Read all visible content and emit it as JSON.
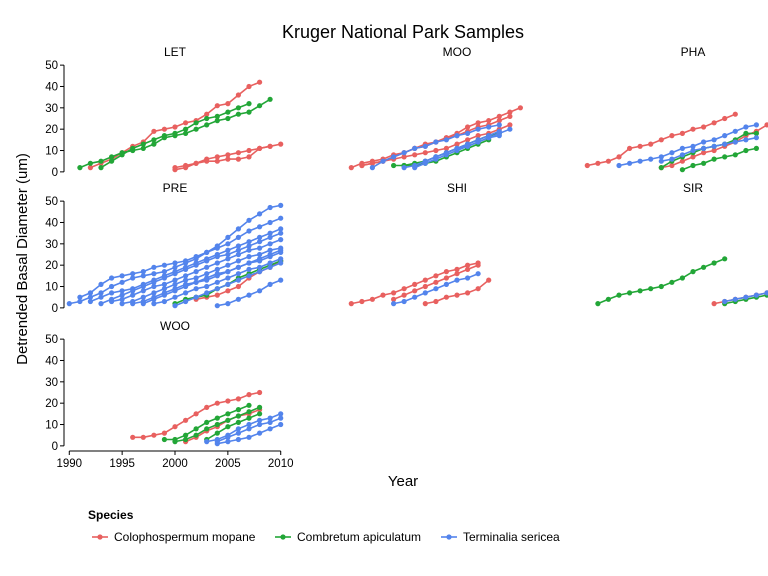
{
  "chart_data": {
    "type": "line",
    "title": "Kruger National Park Samples",
    "xlabel": "Year",
    "ylabel": "Detrended Basal Diameter (um)",
    "xlim": [
      1989.5,
      2010.5
    ],
    "ylim": [
      -1,
      51
    ],
    "x_ticks": [
      1990,
      1995,
      2000,
      2005,
      2010
    ],
    "y_ticks": [
      0,
      10,
      20,
      30,
      40,
      50
    ],
    "legend": {
      "title": "Species",
      "position": "bottom-left",
      "entries": [
        {
          "name": "Colophospermum mopane",
          "color": "#e8605f"
        },
        {
          "name": "Combretum apiculatum",
          "color": "#22a637"
        },
        {
          "name": "Terminalia sericea",
          "color": "#5384ec"
        }
      ]
    },
    "series_colors": {
      "mopane": "#e8605f",
      "combretum": "#22a637",
      "terminalia": "#5384ec"
    },
    "panels": [
      {
        "name": "LET",
        "lines": [
          {
            "species": "mopane",
            "x_start": 1992,
            "values": [
              2,
              4,
              6,
              9,
              12,
              14,
              19,
              20,
              21,
              23,
              24,
              27,
              31,
              32,
              36,
              40,
              42
            ]
          },
          {
            "species": "mopane",
            "x_start": 2000,
            "values": [
              1,
              2,
              4,
              6,
              7,
              8,
              9,
              10,
              11,
              12,
              13
            ]
          },
          {
            "species": "mopane",
            "x_start": 2000,
            "values": [
              2,
              3,
              4,
              5,
              5,
              6,
              6,
              7,
              11,
              12
            ]
          },
          {
            "species": "combretum",
            "x_start": 1991,
            "values": [
              2,
              4,
              5,
              7,
              9,
              10,
              11,
              13,
              16,
              17,
              18,
              20,
              22,
              24,
              25,
              27,
              28,
              31,
              34
            ]
          },
          {
            "species": "combretum",
            "x_start": 1993,
            "values": [
              2,
              5,
              8,
              11,
              13,
              15,
              17,
              18,
              20,
              23,
              25,
              26,
              28,
              30,
              32
            ]
          }
        ]
      },
      {
        "name": "MOO",
        "lines": [
          {
            "species": "mopane",
            "x_start": 1990,
            "values": [
              2,
              4,
              5,
              6,
              8,
              9,
              11,
              13,
              14,
              16,
              18,
              21,
              23,
              24,
              26,
              28,
              30
            ]
          },
          {
            "species": "mopane",
            "x_start": 1991,
            "values": [
              3,
              4,
              5,
              7,
              9,
              11,
              12,
              14,
              16,
              17,
              19,
              21,
              22,
              24,
              26
            ]
          },
          {
            "species": "mopane",
            "x_start": 1991,
            "values": [
              3,
              4,
              5,
              6,
              7,
              8,
              9,
              10,
              11,
              13,
              15,
              17,
              18,
              20,
              22
            ]
          },
          {
            "species": "combretum",
            "x_start": 1994,
            "values": [
              3,
              3,
              3,
              4,
              5,
              7,
              9,
              11,
              13,
              15
            ]
          },
          {
            "species": "combretum",
            "x_start": 1995,
            "values": [
              3,
              4,
              5,
              7,
              9,
              11,
              13,
              15,
              17,
              18
            ]
          },
          {
            "species": "terminalia",
            "x_start": 1992,
            "values": [
              2,
              5,
              7,
              9,
              11,
              12,
              14,
              15,
              17,
              18,
              20,
              21,
              22
            ]
          },
          {
            "species": "terminalia",
            "x_start": 1995,
            "values": [
              2,
              3,
              5,
              7,
              9,
              11,
              12,
              14,
              16,
              17
            ]
          },
          {
            "species": "terminalia",
            "x_start": 1996,
            "values": [
              2,
              4,
              6,
              8,
              10,
              12,
              14,
              16,
              18,
              20
            ]
          },
          {
            "species": "terminalia",
            "x_start": 1997,
            "values": [
              5,
              7,
              9,
              11,
              13,
              15,
              17,
              19
            ]
          }
        ]
      },
      {
        "name": "PHA",
        "lines": [
          {
            "species": "mopane",
            "x_start": 1990,
            "values": [
              3,
              4,
              5,
              7,
              11,
              12,
              13,
              15,
              17,
              18,
              20,
              21,
              23,
              25,
              27
            ]
          },
          {
            "species": "mopane",
            "x_start": 1997,
            "values": [
              2,
              3,
              5,
              7,
              9,
              10,
              12,
              14,
              17,
              19,
              22
            ]
          },
          {
            "species": "combretum",
            "x_start": 1997,
            "values": [
              2,
              5,
              7,
              9,
              11,
              12,
              13,
              15,
              18,
              18
            ]
          },
          {
            "species": "combretum",
            "x_start": 1999,
            "values": [
              1,
              3,
              4,
              6,
              7,
              8,
              10,
              11
            ]
          },
          {
            "species": "terminalia",
            "x_start": 1993,
            "values": [
              3,
              4,
              5,
              6,
              7,
              9,
              11,
              12,
              14,
              15,
              17,
              19,
              21,
              22
            ]
          },
          {
            "species": "terminalia",
            "x_start": 1997,
            "values": [
              5,
              6,
              8,
              10,
              11,
              12,
              13,
              14,
              15,
              16
            ]
          }
        ]
      },
      {
        "name": "PRE",
        "lines": [
          {
            "species": "mopane",
            "x_start": 2002,
            "values": [
              4,
              5,
              6,
              8,
              10,
              14,
              17,
              19,
              22
            ]
          },
          {
            "species": "combretum",
            "x_start": 2000,
            "values": [
              2,
              4,
              5,
              6,
              9,
              11,
              14,
              16,
              18,
              20,
              22
            ]
          },
          {
            "species": "terminalia",
            "x_start": 1990,
            "values": [
              2,
              3,
              5,
              7,
              10,
              12,
              14,
              15,
              16,
              17,
              19,
              21,
              23,
              26,
              29,
              33,
              37,
              41,
              44,
              47,
              48
            ]
          },
          {
            "species": "terminalia",
            "x_start": 1991,
            "values": [
              5,
              7,
              11,
              14,
              15,
              16,
              17,
              19,
              20,
              21,
              22,
              24,
              26,
              28,
              30,
              33,
              36,
              38,
              40,
              42
            ]
          },
          {
            "species": "terminalia",
            "x_start": 1992,
            "values": [
              3,
              5,
              7,
              8,
              9,
              11,
              13,
              15,
              17,
              19,
              21,
              23,
              25,
              27,
              29,
              31,
              33,
              35,
              37
            ]
          },
          {
            "species": "terminalia",
            "x_start": 1993,
            "values": [
              2,
              4,
              6,
              8,
              10,
              12,
              14,
              16,
              18,
              20,
              22,
              24,
              25,
              27,
              29,
              31,
              33,
              35
            ]
          },
          {
            "species": "terminalia",
            "x_start": 1994,
            "values": [
              3,
              4,
              6,
              8,
              10,
              11,
              13,
              15,
              17,
              19,
              21,
              23,
              25,
              27,
              28,
              30,
              32
            ]
          },
          {
            "species": "terminalia",
            "x_start": 1995,
            "values": [
              2,
              3,
              5,
              7,
              9,
              11,
              13,
              14,
              16,
              18,
              20,
              22,
              24,
              25,
              27,
              28
            ]
          },
          {
            "species": "terminalia",
            "x_start": 1996,
            "values": [
              2,
              3,
              5,
              7,
              9,
              11,
              12,
              14,
              16,
              17,
              19,
              21,
              23,
              25,
              27
            ]
          },
          {
            "species": "terminalia",
            "x_start": 1997,
            "values": [
              2,
              4,
              6,
              8,
              10,
              12,
              13,
              15,
              17,
              19,
              21,
              22,
              24,
              26
            ]
          },
          {
            "species": "terminalia",
            "x_start": 1998,
            "values": [
              2,
              3,
              5,
              7,
              9,
              10,
              12,
              14,
              16,
              18,
              19,
              21,
              23
            ]
          },
          {
            "species": "terminalia",
            "x_start": 2000,
            "values": [
              1,
              3,
              5,
              7,
              9,
              11,
              13,
              15,
              17,
              19,
              21
            ]
          },
          {
            "species": "terminalia",
            "x_start": 2004,
            "values": [
              1,
              2,
              4,
              6,
              8,
              11,
              13
            ]
          }
        ]
      },
      {
        "name": "SHI",
        "lines": [
          {
            "species": "mopane",
            "x_start": 1990,
            "values": [
              2,
              3,
              4,
              6,
              7,
              9,
              11,
              13,
              15,
              17,
              18,
              20,
              21
            ]
          },
          {
            "species": "mopane",
            "x_start": 1994,
            "values": [
              4,
              6,
              8,
              10,
              12,
              14,
              16,
              18,
              20
            ]
          },
          {
            "species": "mopane",
            "x_start": 1997,
            "values": [
              2,
              3,
              5,
              6,
              7,
              9,
              13
            ]
          },
          {
            "species": "terminalia",
            "x_start": 1994,
            "values": [
              2,
              3,
              5,
              7,
              9,
              11,
              13,
              14,
              16
            ]
          }
        ]
      },
      {
        "name": "SIR",
        "lines": [
          {
            "species": "mopane",
            "x_start": 2002,
            "values": [
              2,
              3,
              4,
              5,
              6,
              7,
              8
            ]
          },
          {
            "species": "combretum",
            "x_start": 1991,
            "values": [
              2,
              4,
              6,
              7,
              8,
              9,
              10,
              12,
              14,
              17,
              19,
              21,
              23
            ]
          },
          {
            "species": "combretum",
            "x_start": 2003,
            "values": [
              2,
              3,
              4,
              5,
              6,
              7
            ]
          },
          {
            "species": "terminalia",
            "x_start": 2003,
            "values": [
              3,
              4,
              5,
              6,
              7
            ]
          }
        ]
      },
      {
        "name": "WOO",
        "lines": [
          {
            "species": "mopane",
            "x_start": 1996,
            "values": [
              4,
              4,
              5,
              6,
              9,
              12,
              15,
              18,
              20,
              21,
              22,
              24,
              25
            ]
          },
          {
            "species": "mopane",
            "x_start": 2001,
            "values": [
              2,
              4,
              7,
              9,
              12,
              14,
              15,
              17
            ]
          },
          {
            "species": "combretum",
            "x_start": 1999,
            "values": [
              3,
              3,
              5,
              8,
              11,
              13,
              15,
              17,
              19
            ]
          },
          {
            "species": "combretum",
            "x_start": 2000,
            "values": [
              2,
              3,
              5,
              8,
              10,
              12,
              14,
              16,
              18
            ]
          },
          {
            "species": "combretum",
            "x_start": 2003,
            "values": [
              3,
              6,
              9,
              11,
              13,
              15
            ]
          },
          {
            "species": "terminalia",
            "x_start": 2003,
            "values": [
              2,
              3,
              5,
              8,
              10,
              12,
              13,
              15
            ]
          },
          {
            "species": "terminalia",
            "x_start": 2004,
            "values": [
              1,
              2,
              3,
              4,
              6,
              8,
              10
            ]
          },
          {
            "species": "terminalia",
            "x_start": 2004,
            "values": [
              2,
              4,
              6,
              8,
              10,
              11,
              13
            ]
          }
        ]
      }
    ]
  }
}
